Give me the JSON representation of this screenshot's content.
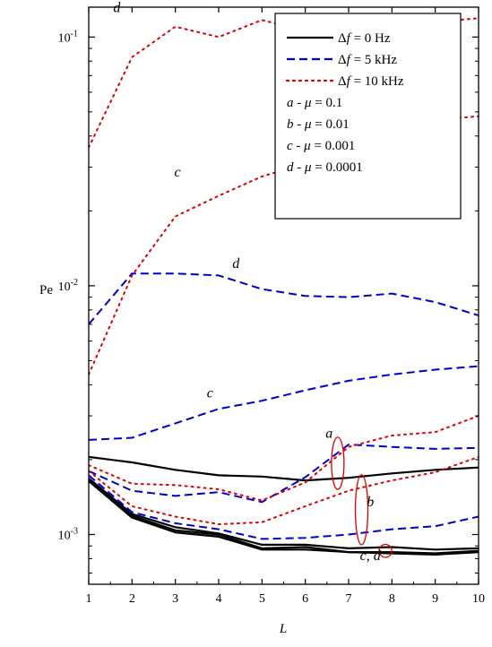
{
  "chart_data": {
    "type": "line",
    "title": "",
    "xlabel": "L",
    "ylabel": "Pe",
    "xlim": [
      1,
      10
    ],
    "ylim_log10": [
      -3.2,
      -0.88
    ],
    "yscale": "log",
    "x_ticks": [
      1,
      2,
      3,
      4,
      5,
      6,
      7,
      8,
      9,
      10
    ],
    "y_ticks": [
      {
        "value": 0.001,
        "base": "10",
        "exp": "-3"
      },
      {
        "value": 0.01,
        "base": "10",
        "exp": "-2"
      },
      {
        "value": 0.1,
        "base": "10",
        "exp": "-1"
      }
    ],
    "grid": false,
    "legend_position": "top-right",
    "legend": {
      "items": [
        {
          "style": "solid",
          "pre": "Δ",
          "var": "f",
          "post": " = 0 Hz",
          "color": "#000000"
        },
        {
          "style": "dashed",
          "pre": "Δ",
          "var": "f",
          "post": " = 5 kHz",
          "color": "#0000cc"
        },
        {
          "style": "dotted",
          "pre": "Δ",
          "var": "f",
          "post": " = 10 kHz",
          "color": "#dd0000"
        }
      ],
      "notes": [
        {
          "letter": "a",
          "mid": " - ",
          "var": "μ",
          "post": " = 0.1"
        },
        {
          "letter": "b",
          "mid": " - ",
          "var": "μ",
          "post": " = 0.01"
        },
        {
          "letter": "c",
          "mid": " - ",
          "var": "μ",
          "post": " = 0.001"
        },
        {
          "letter": "d",
          "mid": " - ",
          "var": "μ",
          "post": " = 0.0001"
        }
      ]
    },
    "series": [
      {
        "style": "solid",
        "curve": "a",
        "x": [
          1,
          2,
          3,
          4,
          5,
          6,
          7,
          8,
          9,
          10
        ],
        "y": [
          0.00205,
          0.00195,
          0.00182,
          0.00173,
          0.00171,
          0.00165,
          0.00169,
          0.00176,
          0.00182,
          0.00186
        ]
      },
      {
        "style": "solid",
        "curve": "b",
        "x": [
          1,
          2,
          3,
          4,
          5,
          6,
          7,
          8,
          9,
          10
        ],
        "y": [
          0.00168,
          0.00121,
          0.00107,
          0.00101,
          0.00091,
          0.00091,
          0.00088,
          0.00089,
          0.00087,
          0.00088
        ]
      },
      {
        "style": "solid",
        "curve": "c",
        "x": [
          1,
          2,
          3,
          4,
          5,
          6,
          7,
          8,
          9,
          10
        ],
        "y": [
          0.00166,
          0.00119,
          0.00104,
          0.001,
          0.00088,
          0.00089,
          0.00085,
          0.00085,
          0.00084,
          0.00086
        ]
      },
      {
        "style": "solid",
        "curve": "d",
        "x": [
          1,
          2,
          3,
          4,
          5,
          6,
          7,
          8,
          9,
          10
        ],
        "y": [
          0.00164,
          0.00117,
          0.00102,
          0.00098,
          0.00087,
          0.00087,
          0.00085,
          0.00084,
          0.00083,
          0.00085
        ]
      },
      {
        "style": "dashed",
        "curve": "a",
        "x": [
          1,
          2,
          3,
          4,
          5,
          6,
          7,
          8,
          9,
          10
        ],
        "y": [
          0.0018,
          0.0015,
          0.00143,
          0.00148,
          0.00135,
          0.0017,
          0.0023,
          0.00225,
          0.00221,
          0.00223
        ]
      },
      {
        "style": "dashed",
        "curve": "b",
        "x": [
          1,
          2,
          3,
          4,
          5,
          6,
          7,
          8,
          9,
          10
        ],
        "y": [
          0.00173,
          0.00123,
          0.00111,
          0.00105,
          0.00096,
          0.00097,
          0.001,
          0.00105,
          0.00108,
          0.00118
        ]
      },
      {
        "style": "dashed",
        "curve": "c",
        "x": [
          1,
          2,
          3,
          4,
          5,
          6,
          7,
          8,
          9,
          10
        ],
        "y": [
          0.0024,
          0.00245,
          0.0028,
          0.0032,
          0.00345,
          0.0038,
          0.00415,
          0.0044,
          0.0046,
          0.00475
        ]
      },
      {
        "style": "dashed",
        "curve": "d",
        "x": [
          1,
          2,
          3,
          4,
          5,
          6,
          7,
          8,
          9,
          10
        ],
        "y": [
          0.007,
          0.0112,
          0.0112,
          0.011,
          0.0097,
          0.0091,
          0.009,
          0.0093,
          0.0086,
          0.0076
        ]
      },
      {
        "style": "dotted",
        "curve": "a",
        "x": [
          1,
          2,
          3,
          4,
          5,
          6,
          7,
          8,
          9,
          10
        ],
        "y": [
          0.0019,
          0.0016,
          0.00158,
          0.00152,
          0.00137,
          0.00162,
          0.00225,
          0.0025,
          0.00258,
          0.003
        ]
      },
      {
        "style": "dotted",
        "curve": "b",
        "x": [
          1,
          2,
          3,
          4,
          5,
          6,
          7,
          8,
          9,
          10
        ],
        "y": [
          0.0018,
          0.0013,
          0.00118,
          0.0011,
          0.00112,
          0.0013,
          0.0015,
          0.00165,
          0.00178,
          0.00205
        ]
      },
      {
        "style": "dotted",
        "curve": "c",
        "x": [
          1,
          2,
          3,
          4,
          5,
          6,
          7,
          8,
          9,
          10
        ],
        "y": [
          0.0044,
          0.011,
          0.019,
          0.023,
          0.0275,
          0.031,
          0.0365,
          0.042,
          0.0465,
          0.048
        ]
      },
      {
        "style": "dotted",
        "curve": "d",
        "x": [
          1,
          2,
          3,
          4,
          5,
          6,
          7,
          8,
          9,
          10
        ],
        "y": [
          0.036,
          0.083,
          0.11,
          0.1,
          0.117,
          0.106,
          0.11,
          0.114,
          0.115,
          0.119
        ]
      }
    ],
    "curve_labels": [
      {
        "text": "d",
        "x": 1.65,
        "y": 0.126
      },
      {
        "text": "c",
        "x": 3.05,
        "y": 0.0275
      },
      {
        "text": "d",
        "x": 4.4,
        "y": 0.0118
      },
      {
        "text": "c",
        "x": 3.8,
        "y": 0.00355
      },
      {
        "text": "a",
        "x": 6.55,
        "y": 0.00245
      },
      {
        "text": "b",
        "x": 7.5,
        "y": 0.0013
      },
      {
        "text": "c, d",
        "x": 7.5,
        "y": 0.00079
      }
    ],
    "annotation_ellipses": [
      {
        "label": "a",
        "x": 6.75,
        "y_low": 0.00157,
        "y_high": 0.00238
      },
      {
        "label": "b",
        "x": 7.3,
        "y_low": 0.00094,
        "y_high": 0.00168
      },
      {
        "label": "cd",
        "x": 7.85,
        "y_low": 0.000837,
        "y_high": 0.000883
      }
    ],
    "colors": {
      "solid": "#000000",
      "dashed": "#0000cc",
      "dotted": "#dd0000",
      "annotation": "#dd0000",
      "axis": "#000000"
    }
  }
}
